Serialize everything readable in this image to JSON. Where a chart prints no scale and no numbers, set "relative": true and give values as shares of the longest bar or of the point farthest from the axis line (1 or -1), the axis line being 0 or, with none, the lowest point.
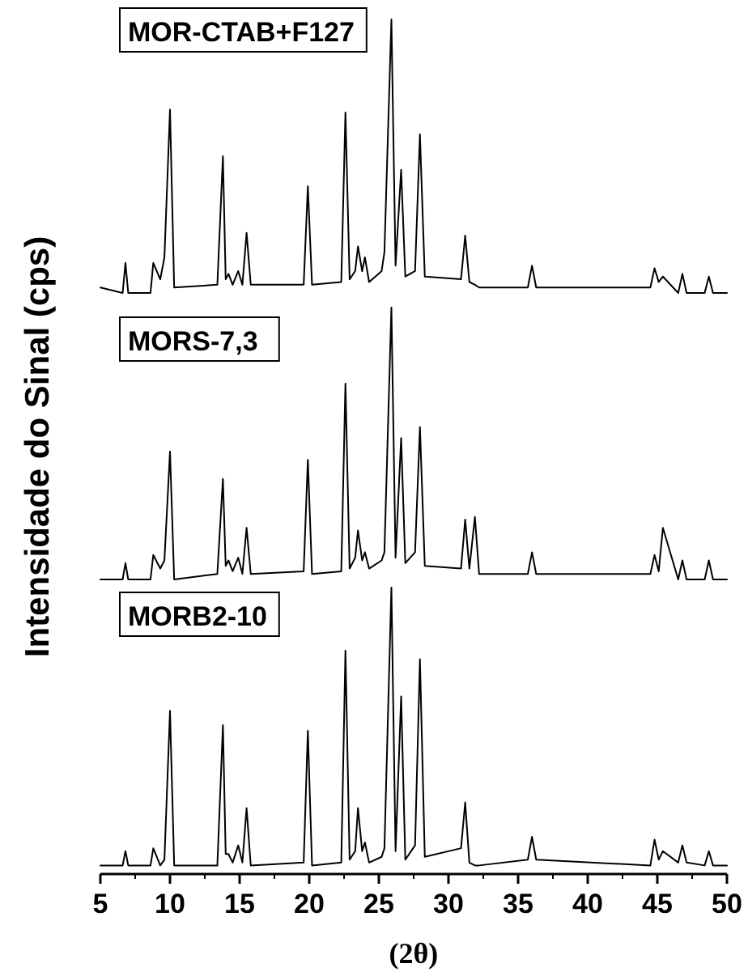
{
  "chart_data": [
    {
      "type": "line",
      "relative": true,
      "xlim": [
        5,
        50
      ],
      "tick_labels": false,
      "ylabel": "Intensidade do Sinal (cps)",
      "x": [
        5,
        6.6,
        6.8,
        7.0,
        8.6,
        8.8,
        9.3,
        9.6,
        10.0,
        10.3,
        13.4,
        13.8,
        14.0,
        14.2,
        14.5,
        14.9,
        15.2,
        15.5,
        15.8,
        19.6,
        19.9,
        20.2,
        22.3,
        22.6,
        22.9,
        23.3,
        23.5,
        23.8,
        24.0,
        24.3,
        25.2,
        25.4,
        25.9,
        26.2,
        26.6,
        26.9,
        27.6,
        27.95,
        28.3,
        30.9,
        31.2,
        31.5,
        31.9,
        32.2,
        35.7,
        36.0,
        36.3,
        44.5,
        44.8,
        45.1,
        45.4,
        46.5,
        46.8,
        47.1,
        48.4,
        48.7,
        49.0,
        50
      ],
      "series": [
        {
          "name": "MOR-CTAB+F127",
          "color": "#000000",
          "values": [
            0.02,
            0,
            0.11,
            0,
            0,
            0.11,
            0.05,
            0.13,
            0.67,
            0.02,
            0.03,
            0.5,
            0.05,
            0.07,
            0.03,
            0.08,
            0.03,
            0.22,
            0.03,
            0.03,
            0.39,
            0.03,
            0.04,
            0.66,
            0.05,
            0.08,
            0.17,
            0.08,
            0.13,
            0.04,
            0.08,
            0.15,
            1,
            0.1,
            0.45,
            0.06,
            0.08,
            0.58,
            0.06,
            0.05,
            0.21,
            0.04,
            0.03,
            0.02,
            0.02,
            0.1,
            0.02,
            0.02,
            0.09,
            0.04,
            0.06,
            0,
            0.07,
            0,
            0,
            0.06,
            0,
            0
          ]
        }
      ]
    },
    {
      "type": "line",
      "relative": true,
      "xlim": [
        5,
        50
      ],
      "tick_labels": false,
      "x": [
        5,
        6.6,
        6.8,
        7.0,
        8.6,
        8.8,
        9.3,
        9.6,
        10.0,
        10.3,
        13.4,
        13.8,
        14.0,
        14.2,
        14.5,
        14.9,
        15.2,
        15.5,
        15.8,
        19.6,
        19.9,
        20.2,
        22.3,
        22.6,
        22.9,
        23.3,
        23.5,
        23.8,
        24.0,
        24.3,
        25.2,
        25.4,
        25.9,
        26.2,
        26.6,
        26.9,
        27.6,
        27.95,
        28.3,
        30.9,
        31.2,
        31.5,
        31.9,
        32.2,
        35.7,
        36.0,
        36.3,
        44.5,
        44.8,
        45.1,
        45.4,
        46.5,
        46.8,
        47.1,
        48.4,
        48.7,
        49.0,
        50
      ],
      "series": [
        {
          "name": "MORS-7,3",
          "color": "#000000",
          "values": [
            0,
            0,
            0.06,
            0,
            0,
            0.09,
            0.04,
            0.07,
            0.47,
            0,
            0.02,
            0.37,
            0.05,
            0.07,
            0.03,
            0.08,
            0.02,
            0.19,
            0.02,
            0.03,
            0.44,
            0.02,
            0.03,
            0.72,
            0.04,
            0.08,
            0.18,
            0.07,
            0.1,
            0.04,
            0.07,
            0.1,
            1,
            0.08,
            0.52,
            0.06,
            0.1,
            0.56,
            0.05,
            0.04,
            0.22,
            0.04,
            0.23,
            0.02,
            0.02,
            0.1,
            0.02,
            0.02,
            0.09,
            0.03,
            0.19,
            0,
            0.07,
            0,
            0,
            0.07,
            0,
            0
          ]
        }
      ]
    },
    {
      "type": "line",
      "relative": true,
      "xlim": [
        5,
        50
      ],
      "tick_labels": "x",
      "xlabel": "(2θ)",
      "xticks": [
        5,
        10,
        15,
        20,
        25,
        30,
        35,
        40,
        45,
        50
      ],
      "x": [
        5,
        6.6,
        6.8,
        7.0,
        8.6,
        8.8,
        9.3,
        9.6,
        10.0,
        10.3,
        13.4,
        13.8,
        14.0,
        14.2,
        14.5,
        14.9,
        15.2,
        15.5,
        15.8,
        19.6,
        19.9,
        20.2,
        22.3,
        22.6,
        22.9,
        23.3,
        23.5,
        23.8,
        24.0,
        24.3,
        25.2,
        25.4,
        25.9,
        26.2,
        26.6,
        26.9,
        27.6,
        27.95,
        28.3,
        30.9,
        31.2,
        31.5,
        31.9,
        32.2,
        35.7,
        36.0,
        36.3,
        44.5,
        44.8,
        45.1,
        45.4,
        46.5,
        46.8,
        47.1,
        48.4,
        48.7,
        49.0,
        50
      ],
      "series": [
        {
          "name": "MORB2-10",
          "color": "#000000",
          "values": [
            0.03,
            0.03,
            0.08,
            0.03,
            0.03,
            0.09,
            0.03,
            0.05,
            0.57,
            0.03,
            0.03,
            0.52,
            0.07,
            0.07,
            0.04,
            0.1,
            0.04,
            0.23,
            0.03,
            0.04,
            0.5,
            0.03,
            0.04,
            0.78,
            0.05,
            0.08,
            0.23,
            0.08,
            0.11,
            0.04,
            0.06,
            0.09,
            1,
            0.08,
            0.62,
            0.05,
            0.1,
            0.75,
            0.06,
            0.09,
            0.25,
            0.04,
            0.03,
            0.03,
            0.05,
            0.13,
            0.05,
            0.03,
            0.12,
            0.05,
            0.08,
            0.04,
            0.1,
            0.04,
            0.03,
            0.08,
            0.03,
            0.03
          ]
        }
      ]
    }
  ]
}
